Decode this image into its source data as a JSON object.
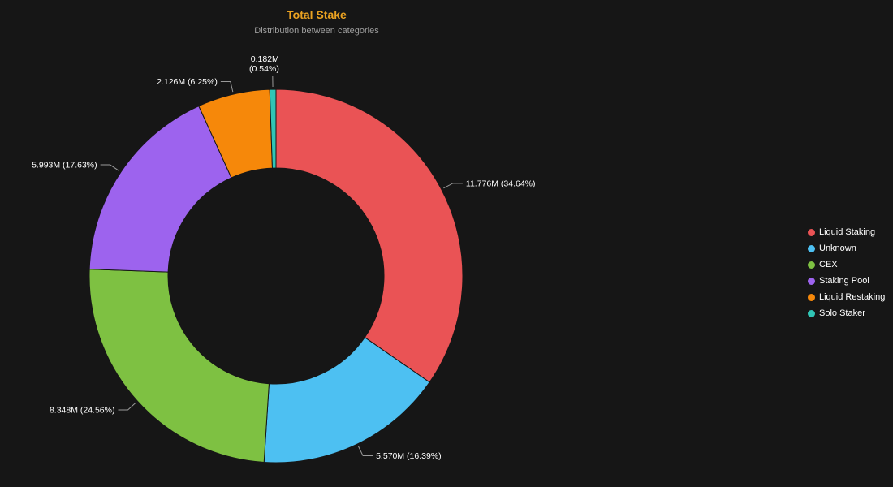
{
  "header": {
    "title": "Total Stake",
    "subtitle": "Distribution between categories"
  },
  "colors": {
    "background": "#161616",
    "title": "#eaa221",
    "subtitle": "#9e9e9e",
    "label_text": "#ffffff"
  },
  "chart_data": {
    "type": "pie",
    "variant": "donut",
    "title": "Total Stake",
    "subtitle": "Distribution between categories",
    "direction": "clockwise",
    "start_angle_deg": 0,
    "legend_position": "right",
    "unit": "M",
    "slices": [
      {
        "label": "Liquid Staking",
        "value": 11.776,
        "pct": 34.64,
        "display": "11.776M (34.64%)",
        "color": "#ea5355"
      },
      {
        "label": "Unknown",
        "value": 5.57,
        "pct": 16.39,
        "display": "5.570M (16.39%)",
        "color": "#4dc0f2"
      },
      {
        "label": "CEX",
        "value": 8.348,
        "pct": 24.56,
        "display": "8.348M (24.56%)",
        "color": "#7ec142"
      },
      {
        "label": "Staking Pool",
        "value": 5.993,
        "pct": 17.63,
        "display": "5.993M (17.63%)",
        "color": "#9d63ee"
      },
      {
        "label": "Liquid Restaking",
        "value": 2.126,
        "pct": 6.25,
        "display": "2.126M (6.25%)",
        "color": "#f6880a"
      },
      {
        "label": "Solo Staker",
        "value": 0.182,
        "pct": 0.54,
        "display": "0.182M (0.54%)",
        "color": "#30c5b5",
        "label_lines": [
          "0.182M",
          "(0.54%)"
        ]
      }
    ]
  }
}
